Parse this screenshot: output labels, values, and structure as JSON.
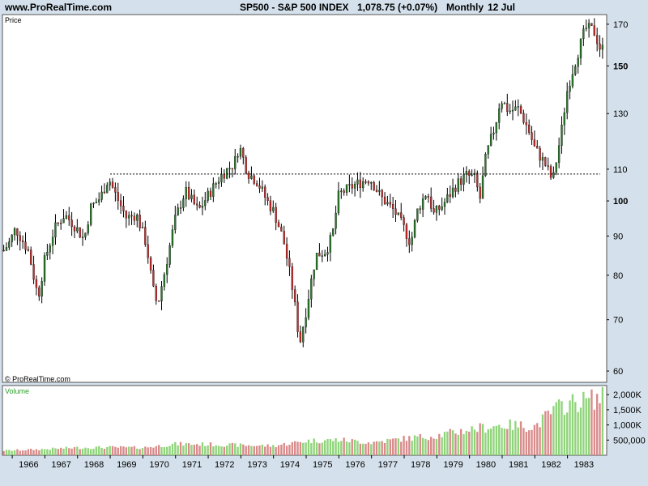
{
  "header": {
    "site": "www.ProRealTime.com",
    "symbol": "SP500 - S&P 500 INDEX",
    "last": "1,078.75 (+0.07%)",
    "period": "Monthly",
    "date": "12 Jul"
  },
  "price_panel_label": "Price",
  "copyright": "© ProRealTime.com",
  "volume_panel_label": "Volume",
  "colors": {
    "background": "#d4e1ec",
    "up": "#2a7a2a",
    "down": "#cc2a2a",
    "vol_up": "#8fd47a",
    "vol_down": "#d98a8a"
  },
  "chart_data": [
    {
      "type": "candlestick",
      "title": "SP500 - S&P 500 INDEX",
      "ylabel": "Price",
      "y_scale": "log",
      "ylim": [
        58,
        175
      ],
      "y_ticks": [
        60,
        70,
        80,
        90,
        100,
        110,
        130,
        150,
        170
      ],
      "y_ticks_bold": [
        100,
        150
      ],
      "x_ticks": [
        "1966",
        "1967",
        "1968",
        "1969",
        "1970",
        "1971",
        "1972",
        "1973",
        "1974",
        "1975",
        "1976",
        "1977",
        "1978",
        "1979",
        "1980",
        "1981",
        "1982",
        "1983"
      ],
      "x_range": [
        1965.7,
        1984.2
      ],
      "reference_line": {
        "value": 108.4,
        "from": 1969.0,
        "to": 1984.0,
        "style": "dotted"
      },
      "anchors": [
        [
          1965.72,
          86
        ],
        [
          1965.9,
          88
        ],
        [
          1966.1,
          92
        ],
        [
          1966.3,
          89
        ],
        [
          1966.5,
          86
        ],
        [
          1966.7,
          78
        ],
        [
          1966.8,
          75
        ],
        [
          1967.0,
          84
        ],
        [
          1967.3,
          92
        ],
        [
          1967.6,
          96
        ],
        [
          1967.9,
          93
        ],
        [
          1968.2,
          89
        ],
        [
          1968.4,
          98
        ],
        [
          1968.7,
          101
        ],
        [
          1968.95,
          107
        ],
        [
          1969.2,
          101
        ],
        [
          1969.5,
          95
        ],
        [
          1969.8,
          96
        ],
        [
          1970.1,
          88
        ],
        [
          1970.3,
          77
        ],
        [
          1970.45,
          73
        ],
        [
          1970.7,
          82
        ],
        [
          1971.0,
          95
        ],
        [
          1971.3,
          103
        ],
        [
          1971.7,
          97
        ],
        [
          1971.95,
          101
        ],
        [
          1972.4,
          108
        ],
        [
          1972.8,
          112
        ],
        [
          1972.95,
          118
        ],
        [
          1973.2,
          109
        ],
        [
          1973.5,
          106
        ],
        [
          1973.8,
          100
        ],
        [
          1974.0,
          97
        ],
        [
          1974.3,
          89
        ],
        [
          1974.6,
          76
        ],
        [
          1974.8,
          65
        ],
        [
          1975.0,
          72
        ],
        [
          1975.3,
          85
        ],
        [
          1975.6,
          86
        ],
        [
          1975.8,
          90
        ],
        [
          1976.0,
          102
        ],
        [
          1976.5,
          105
        ],
        [
          1976.95,
          107
        ],
        [
          1977.3,
          101
        ],
        [
          1977.7,
          97
        ],
        [
          1978.0,
          92
        ],
        [
          1978.2,
          88
        ],
        [
          1978.4,
          97
        ],
        [
          1978.7,
          103
        ],
        [
          1978.9,
          96
        ],
        [
          1979.2,
          99
        ],
        [
          1979.6,
          105
        ],
        [
          1979.9,
          108
        ],
        [
          1980.2,
          107
        ],
        [
          1980.3,
          99
        ],
        [
          1980.5,
          114
        ],
        [
          1980.8,
          126
        ],
        [
          1980.95,
          136
        ],
        [
          1981.2,
          131
        ],
        [
          1981.5,
          132
        ],
        [
          1981.8,
          124
        ],
        [
          1982.0,
          117
        ],
        [
          1982.3,
          112
        ],
        [
          1982.55,
          106
        ],
        [
          1982.8,
          122
        ],
        [
          1983.0,
          140
        ],
        [
          1983.3,
          155
        ],
        [
          1983.55,
          168
        ],
        [
          1983.8,
          167
        ],
        [
          1984.0,
          158
        ]
      ]
    },
    {
      "type": "bar",
      "title": "Volume",
      "y_ticks": [
        "2,000K",
        "1,500K",
        "1,000K",
        "500,000"
      ],
      "y_tick_values": [
        2000000,
        1500000,
        1000000,
        500000
      ],
      "ylim": [
        0,
        2300000
      ],
      "anchors": [
        [
          1965.7,
          150000
        ],
        [
          1967.0,
          200000
        ],
        [
          1968.0,
          250000
        ],
        [
          1969.0,
          260000
        ],
        [
          1970.0,
          250000
        ],
        [
          1971.0,
          370000
        ],
        [
          1972.0,
          360000
        ],
        [
          1973.0,
          330000
        ],
        [
          1974.0,
          310000
        ],
        [
          1975.0,
          470000
        ],
        [
          1976.0,
          510000
        ],
        [
          1977.0,
          420000
        ],
        [
          1978.0,
          550000
        ],
        [
          1979.0,
          650000
        ],
        [
          1980.0,
          850000
        ],
        [
          1981.0,
          1000000
        ],
        [
          1982.0,
          950000
        ],
        [
          1982.6,
          1500000
        ],
        [
          1983.0,
          1700000
        ],
        [
          1984.0,
          1900000
        ]
      ]
    }
  ]
}
